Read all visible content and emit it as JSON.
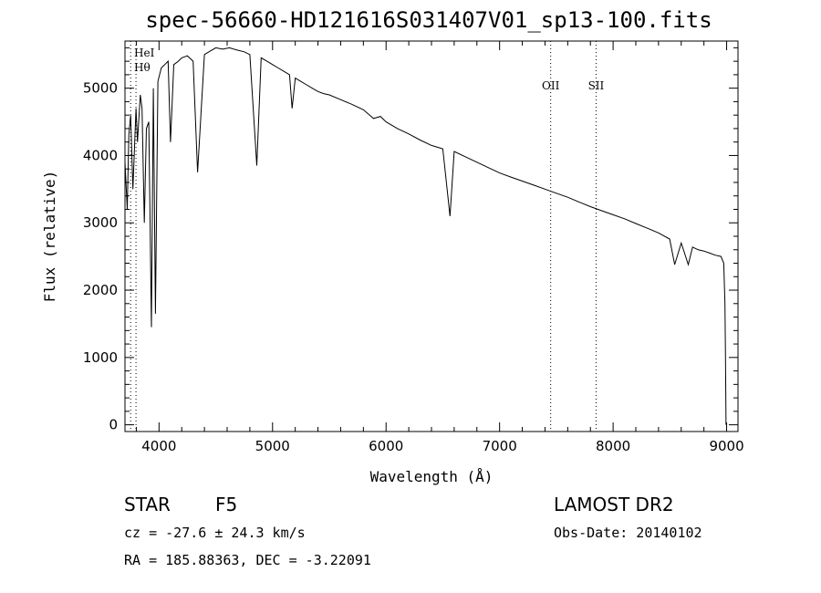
{
  "title": "spec-56660-HD121616S031407V01_sp13-100.fits",
  "info": {
    "object_class": "STAR",
    "subclass": "F5",
    "survey": "LAMOST DR2",
    "cz": "cz = -27.6 ± 24.3 km/s",
    "obs_date": "Obs-Date: 20140102",
    "coords": "RA = 185.88363, DEC =  -3.22091"
  },
  "chart_data": {
    "type": "line",
    "title": "spec-56660-HD121616S031407V01_sp13-100.fits",
    "xlabel": "Wavelength (Å)",
    "ylabel": "Flux (relative)",
    "xlim": [
      3700,
      9100
    ],
    "ylim": [
      -100,
      5700
    ],
    "xticks": [
      4000,
      5000,
      6000,
      7000,
      8000,
      9000
    ],
    "yticks": [
      0,
      1000,
      2000,
      3000,
      4000,
      5000
    ],
    "grid": false,
    "legend": "none",
    "series": [
      {
        "x": [
          3700,
          3720,
          3734,
          3750,
          3770,
          3797,
          3810,
          3835,
          3850,
          3870,
          3889,
          3910,
          3933,
          3950,
          3968,
          3990,
          4020,
          4050,
          4080,
          4101,
          4130,
          4170,
          4200,
          4250,
          4300,
          4340,
          4400,
          4450,
          4500,
          4560,
          4620,
          4680,
          4750,
          4800,
          4861,
          4900,
          4950,
          5000,
          5050,
          5100,
          5150,
          5172,
          5200,
          5250,
          5300,
          5350,
          5400,
          5450,
          5500,
          5600,
          5700,
          5800,
          5890,
          5950,
          6000,
          6100,
          6200,
          6300,
          6400,
          6500,
          6563,
          6600,
          6700,
          6800,
          6900,
          7000,
          7100,
          7200,
          7300,
          7400,
          7500,
          7600,
          7700,
          7800,
          7900,
          8000,
          8100,
          8200,
          8300,
          8400,
          8498,
          8542,
          8600,
          8662,
          8700,
          8750,
          8800,
          8850,
          8900,
          8950,
          8975,
          8985,
          8990,
          8995
        ],
        "y": [
          3900,
          3200,
          4300,
          4600,
          3500,
          4700,
          4200,
          4900,
          4700,
          3000,
          4400,
          4500,
          1450,
          5000,
          1650,
          5100,
          5300,
          5350,
          5400,
          4200,
          5350,
          5400,
          5450,
          5480,
          5400,
          3750,
          5500,
          5550,
          5600,
          5580,
          5600,
          5570,
          5540,
          5500,
          3850,
          5450,
          5400,
          5350,
          5300,
          5250,
          5200,
          4700,
          5150,
          5100,
          5050,
          5000,
          4950,
          4920,
          4900,
          4830,
          4760,
          4680,
          4550,
          4580,
          4500,
          4400,
          4320,
          4230,
          4150,
          4100,
          3100,
          4060,
          3980,
          3900,
          3820,
          3740,
          3680,
          3620,
          3560,
          3500,
          3440,
          3380,
          3310,
          3240,
          3180,
          3120,
          3060,
          2990,
          2920,
          2850,
          2760,
          2380,
          2700,
          2380,
          2640,
          2600,
          2580,
          2550,
          2520,
          2500,
          2400,
          1800,
          1000,
          0
        ]
      }
    ],
    "line_markers": [
      {
        "label": "HeI",
        "x": 3750
      },
      {
        "label": "Hθ",
        "x": 3797
      },
      {
        "label": "OII",
        "x": 7450
      },
      {
        "label": "SII",
        "x": 7850
      }
    ]
  }
}
